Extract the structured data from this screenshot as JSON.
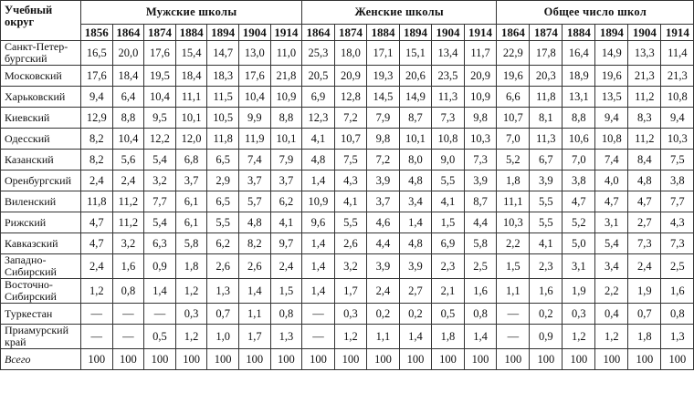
{
  "header": {
    "first": "Учебный округ",
    "groups": [
      {
        "title": "Мужские школы",
        "years": [
          "1856",
          "1864",
          "1874",
          "1884",
          "1894",
          "1904",
          "1914"
        ]
      },
      {
        "title": "Женские школы",
        "years": [
          "1864",
          "1874",
          "1884",
          "1894",
          "1904",
          "1914"
        ]
      },
      {
        "title": "Общее число школ",
        "years": [
          "1864",
          "1874",
          "1884",
          "1894",
          "1904",
          "1914"
        ]
      }
    ]
  },
  "table": {
    "rows": [
      {
        "name": "Санкт-Петер-бургский",
        "values": [
          "16,5",
          "20,0",
          "17,6",
          "15,4",
          "14,7",
          "13,0",
          "11,0",
          "25,3",
          "18,0",
          "17,1",
          "15,1",
          "13,4",
          "11,7",
          "22,9",
          "17,8",
          "16,4",
          "14,9",
          "13,3",
          "11,4"
        ]
      },
      {
        "name": "Московский",
        "values": [
          "17,6",
          "18,4",
          "19,5",
          "18,4",
          "18,3",
          "17,6",
          "21,8",
          "20,5",
          "20,9",
          "19,3",
          "20,6",
          "23,5",
          "20,9",
          "19,6",
          "20,3",
          "18,9",
          "19,6",
          "21,3",
          "21,3"
        ]
      },
      {
        "name": "Харьковский",
        "values": [
          "9,4",
          "6,4",
          "10,4",
          "11,1",
          "11,5",
          "10,4",
          "10,9",
          "6,9",
          "12,8",
          "14,5",
          "14,9",
          "11,3",
          "10,9",
          "6,6",
          "11,8",
          "13,1",
          "13,5",
          "11,2",
          "10,8"
        ]
      },
      {
        "name": "Киевский",
        "values": [
          "12,9",
          "8,8",
          "9,5",
          "10,1",
          "10,5",
          "9,9",
          "8,8",
          "12,3",
          "7,2",
          "7,9",
          "8,7",
          "7,3",
          "9,8",
          "10,7",
          "8,1",
          "8,8",
          "9,4",
          "8,3",
          "9,4"
        ]
      },
      {
        "name": "Одесский",
        "values": [
          "8,2",
          "10,4",
          "12,2",
          "12,0",
          "11,8",
          "11,9",
          "10,1",
          "4,1",
          "10,7",
          "9,8",
          "10,1",
          "10,8",
          "10,3",
          "7,0",
          "11,3",
          "10,6",
          "10,8",
          "11,2",
          "10,3"
        ]
      },
      {
        "name": "Казанский",
        "values": [
          "8,2",
          "5,6",
          "5,4",
          "6,8",
          "6,5",
          "7,4",
          "7,9",
          "4,8",
          "7,5",
          "7,2",
          "8,0",
          "9,0",
          "7,3",
          "5,2",
          "6,7",
          "7,0",
          "7,4",
          "8,4",
          "7,5"
        ]
      },
      {
        "name": "Оренбургский",
        "values": [
          "2,4",
          "2,4",
          "3,2",
          "3,7",
          "2,9",
          "3,7",
          "3,7",
          "1,4",
          "4,3",
          "3,9",
          "4,8",
          "5,5",
          "3,9",
          "1,8",
          "3,9",
          "3,8",
          "4,0",
          "4,8",
          "3,8"
        ]
      },
      {
        "name": "Виленский",
        "values": [
          "11,8",
          "11,2",
          "7,7",
          "6,1",
          "6,5",
          "5,7",
          "6,2",
          "10,9",
          "4,1",
          "3,7",
          "3,4",
          "4,1",
          "8,7",
          "11,1",
          "5,5",
          "4,7",
          "4,7",
          "4,7",
          "7,7"
        ]
      },
      {
        "name": "Рижский",
        "values": [
          "4,7",
          "11,2",
          "5,4",
          "6,1",
          "5,5",
          "4,8",
          "4,1",
          "9,6",
          "5,5",
          "4,6",
          "1,4",
          "1,5",
          "4,4",
          "10,3",
          "5,5",
          "5,2",
          "3,1",
          "2,7",
          "4,3"
        ]
      },
      {
        "name": "Кавказский",
        "values": [
          "4,7",
          "3,2",
          "6,3",
          "5,8",
          "6,2",
          "8,2",
          "9,7",
          "1,4",
          "2,6",
          "4,4",
          "4,8",
          "6,9",
          "5,8",
          "2,2",
          "4,1",
          "5,0",
          "5,4",
          "7,3",
          "7,3"
        ]
      },
      {
        "name": "Западно-Сибирский",
        "values": [
          "2,4",
          "1,6",
          "0,9",
          "1,8",
          "2,6",
          "2,6",
          "2,4",
          "1,4",
          "3,2",
          "3,9",
          "3,9",
          "2,3",
          "2,5",
          "1,5",
          "2,3",
          "3,1",
          "3,4",
          "2,4",
          "2,5"
        ]
      },
      {
        "name": "Восточно-Сибирский",
        "values": [
          "1,2",
          "0,8",
          "1,4",
          "1,2",
          "1,3",
          "1,4",
          "1,5",
          "1,4",
          "1,7",
          "2,4",
          "2,7",
          "2,1",
          "1,6",
          "1,1",
          "1,6",
          "1,9",
          "2,2",
          "1,9",
          "1,6"
        ]
      },
      {
        "name": "Туркестан",
        "values": [
          "—",
          "—",
          "—",
          "0,3",
          "0,7",
          "1,1",
          "0,8",
          "—",
          "0,3",
          "0,2",
          "0,2",
          "0,5",
          "0,8",
          "—",
          "0,2",
          "0,3",
          "0,4",
          "0,7",
          "0,8"
        ]
      },
      {
        "name": "Приамурский край",
        "values": [
          "—",
          "—",
          "0,5",
          "1,2",
          "1,0",
          "1,7",
          "1,3",
          "—",
          "1,2",
          "1,1",
          "1,4",
          "1,8",
          "1,4",
          "—",
          "0,9",
          "1,2",
          "1,2",
          "1,8",
          "1,3"
        ]
      },
      {
        "name": "Всего",
        "values": [
          "100",
          "100",
          "100",
          "100",
          "100",
          "100",
          "100",
          "100",
          "100",
          "100",
          "100",
          "100",
          "100",
          "100",
          "100",
          "100",
          "100",
          "100",
          "100"
        ]
      }
    ]
  }
}
